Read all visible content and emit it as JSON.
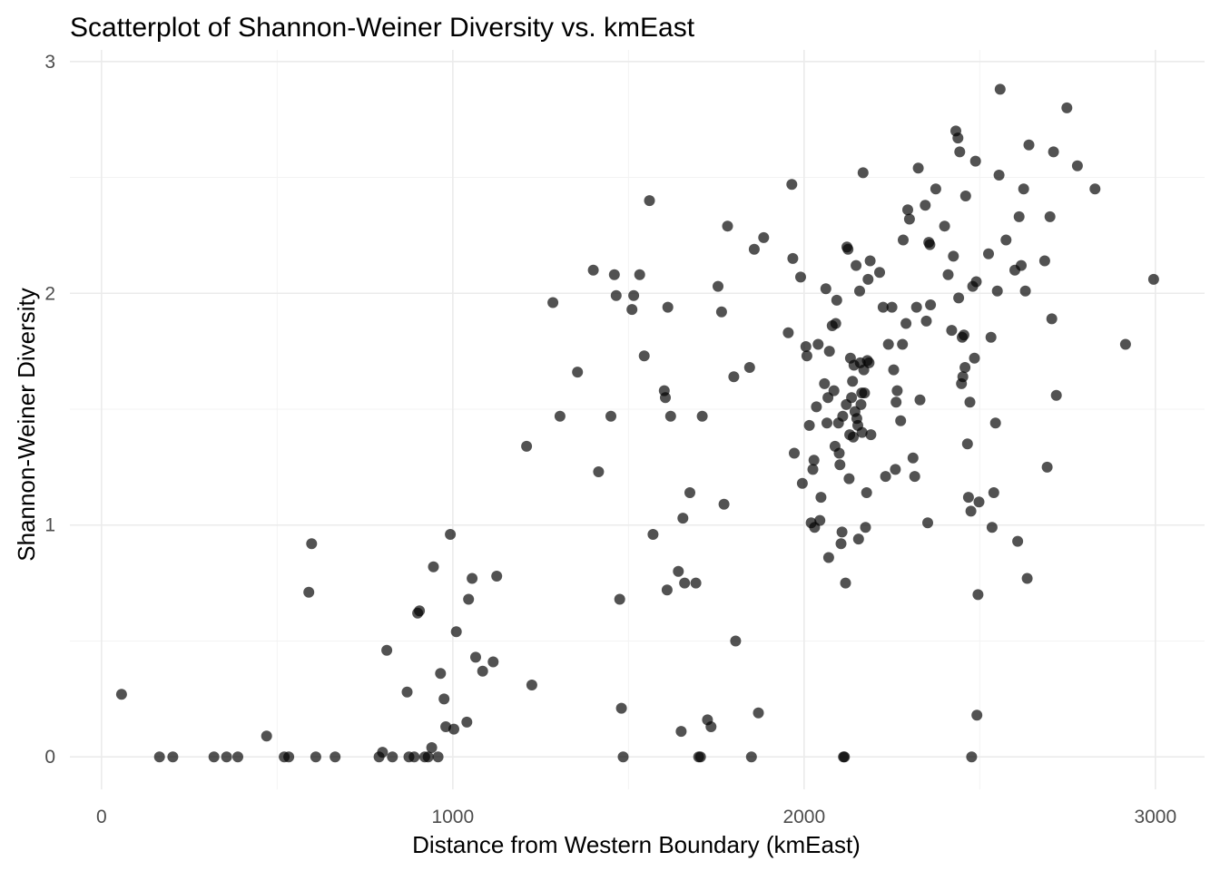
{
  "chart_data": {
    "type": "scatter",
    "title": "Scatterplot of Shannon-Weiner Diversity vs. kmEast",
    "xlabel": "Distance from Western Boundary (kmEast)",
    "ylabel": "Shannon-Weiner Diversity",
    "xlim": [
      -90,
      3140
    ],
    "ylim": [
      -0.14,
      3.05
    ],
    "xticks": [
      0,
      1000,
      2000,
      3000
    ],
    "xtick_labels": [
      "0",
      "1000",
      "2000",
      "3000"
    ],
    "yticks": [
      0,
      1,
      2,
      3
    ],
    "ytick_labels": [
      "0",
      "1",
      "2",
      "3"
    ],
    "grid": true,
    "legend": "none",
    "point_color": "#000000",
    "points": [
      [
        57,
        0.27
      ],
      [
        165,
        0
      ],
      [
        203,
        0
      ],
      [
        320,
        0
      ],
      [
        356,
        0
      ],
      [
        388,
        0
      ],
      [
        470,
        0.09
      ],
      [
        520,
        0
      ],
      [
        533,
        0
      ],
      [
        590,
        0.71
      ],
      [
        598,
        0.92
      ],
      [
        610,
        0
      ],
      [
        665,
        0
      ],
      [
        790,
        0
      ],
      [
        800,
        0.02
      ],
      [
        812,
        0.46
      ],
      [
        828,
        0
      ],
      [
        870,
        0.28
      ],
      [
        875,
        0
      ],
      [
        890,
        0
      ],
      [
        905,
        0.63
      ],
      [
        900,
        0.62
      ],
      [
        920,
        0
      ],
      [
        930,
        0
      ],
      [
        940,
        0.04
      ],
      [
        945,
        0.82
      ],
      [
        958,
        0
      ],
      [
        965,
        0.36
      ],
      [
        975,
        0.25
      ],
      [
        980,
        0.13
      ],
      [
        993,
        0.96
      ],
      [
        1003,
        0.12
      ],
      [
        1010,
        0.54
      ],
      [
        1040,
        0.15
      ],
      [
        1045,
        0.68
      ],
      [
        1055,
        0.77
      ],
      [
        1065,
        0.43
      ],
      [
        1085,
        0.37
      ],
      [
        1115,
        0.41
      ],
      [
        1125,
        0.78
      ],
      [
        1210,
        1.34
      ],
      [
        1225,
        0.31
      ],
      [
        1285,
        1.96
      ],
      [
        1305,
        1.47
      ],
      [
        1355,
        1.66
      ],
      [
        1400,
        2.1
      ],
      [
        1415,
        1.23
      ],
      [
        1450,
        1.47
      ],
      [
        1460,
        2.08
      ],
      [
        1465,
        1.99
      ],
      [
        1475,
        0.68
      ],
      [
        1480,
        0.21
      ],
      [
        1485,
        0
      ],
      [
        1510,
        1.93
      ],
      [
        1515,
        1.99
      ],
      [
        1532,
        2.08
      ],
      [
        1545,
        1.73
      ],
      [
        1560,
        2.4
      ],
      [
        1570,
        0.96
      ],
      [
        1602,
        1.58
      ],
      [
        1605,
        1.55
      ],
      [
        1610,
        0.72
      ],
      [
        1612,
        1.94
      ],
      [
        1620,
        1.47
      ],
      [
        1642,
        0.8
      ],
      [
        1650,
        0.11
      ],
      [
        1655,
        1.03
      ],
      [
        1660,
        0.75
      ],
      [
        1675,
        1.14
      ],
      [
        1692,
        0.75
      ],
      [
        1700,
        0
      ],
      [
        1705,
        0
      ],
      [
        1710,
        1.47
      ],
      [
        1725,
        0.16
      ],
      [
        1735,
        0.13
      ],
      [
        1755,
        2.03
      ],
      [
        1765,
        1.92
      ],
      [
        1772,
        1.09
      ],
      [
        1782,
        2.29
      ],
      [
        1800,
        1.64
      ],
      [
        1805,
        0.5
      ],
      [
        1845,
        1.68
      ],
      [
        1850,
        0
      ],
      [
        1858,
        2.19
      ],
      [
        1870,
        0.19
      ],
      [
        1885,
        2.24
      ],
      [
        1955,
        1.83
      ],
      [
        1965,
        2.47
      ],
      [
        1968,
        2.15
      ],
      [
        1972,
        1.31
      ],
      [
        1990,
        2.07
      ],
      [
        1995,
        1.18
      ],
      [
        2005,
        1.77
      ],
      [
        2008,
        1.73
      ],
      [
        2015,
        1.43
      ],
      [
        2020,
        1.01
      ],
      [
        2025,
        1.24
      ],
      [
        2028,
        1.28
      ],
      [
        2030,
        0.99
      ],
      [
        2035,
        1.51
      ],
      [
        2040,
        1.78
      ],
      [
        2045,
        1.02
      ],
      [
        2048,
        1.12
      ],
      [
        2058,
        1.61
      ],
      [
        2062,
        2.02
      ],
      [
        2065,
        1.44
      ],
      [
        2068,
        1.55
      ],
      [
        2070,
        0.86
      ],
      [
        2072,
        1.75
      ],
      [
        2080,
        1.86
      ],
      [
        2085,
        1.58
      ],
      [
        2088,
        1.34
      ],
      [
        2090,
        1.87
      ],
      [
        2093,
        1.97
      ],
      [
        2098,
        1.44
      ],
      [
        2100,
        1.31
      ],
      [
        2102,
        1.26
      ],
      [
        2105,
        0.92
      ],
      [
        2108,
        0.97
      ],
      [
        2110,
        1.47
      ],
      [
        2112,
        0
      ],
      [
        2115,
        0
      ],
      [
        2118,
        0.75
      ],
      [
        2120,
        1.52
      ],
      [
        2122,
        2.2
      ],
      [
        2125,
        2.19
      ],
      [
        2128,
        1.2
      ],
      [
        2130,
        1.39
      ],
      [
        2132,
        1.72
      ],
      [
        2135,
        1.55
      ],
      [
        2138,
        1.62
      ],
      [
        2140,
        1.38
      ],
      [
        2142,
        1.69
      ],
      [
        2145,
        1.49
      ],
      [
        2148,
        2.12
      ],
      [
        2150,
        1.46
      ],
      [
        2153,
        1.43
      ],
      [
        2155,
        0.94
      ],
      [
        2158,
        2.01
      ],
      [
        2160,
        1.7
      ],
      [
        2162,
        1.52
      ],
      [
        2164,
        1.57
      ],
      [
        2165,
        1.4
      ],
      [
        2168,
        2.52
      ],
      [
        2170,
        1.67
      ],
      [
        2172,
        1.57
      ],
      [
        2175,
        0.99
      ],
      [
        2178,
        1.14
      ],
      [
        2180,
        1.71
      ],
      [
        2182,
        2.06
      ],
      [
        2185,
        1.7
      ],
      [
        2188,
        2.14
      ],
      [
        2190,
        1.39
      ],
      [
        2215,
        2.09
      ],
      [
        2225,
        1.94
      ],
      [
        2232,
        1.21
      ],
      [
        2240,
        1.78
      ],
      [
        2250,
        1.94
      ],
      [
        2255,
        1.67
      ],
      [
        2260,
        1.24
      ],
      [
        2262,
        1.53
      ],
      [
        2265,
        1.58
      ],
      [
        2275,
        1.45
      ],
      [
        2280,
        1.78
      ],
      [
        2282,
        2.23
      ],
      [
        2290,
        1.87
      ],
      [
        2295,
        2.36
      ],
      [
        2300,
        2.32
      ],
      [
        2310,
        1.29
      ],
      [
        2315,
        1.21
      ],
      [
        2320,
        1.94
      ],
      [
        2325,
        2.54
      ],
      [
        2330,
        1.54
      ],
      [
        2345,
        2.38
      ],
      [
        2348,
        1.88
      ],
      [
        2352,
        1.01
      ],
      [
        2355,
        2.22
      ],
      [
        2358,
        2.21
      ],
      [
        2360,
        1.95
      ],
      [
        2375,
        2.45
      ],
      [
        2400,
        2.29
      ],
      [
        2410,
        2.08
      ],
      [
        2420,
        1.84
      ],
      [
        2425,
        2.16
      ],
      [
        2432,
        2.7
      ],
      [
        2438,
        2.67
      ],
      [
        2440,
        1.98
      ],
      [
        2443,
        2.61
      ],
      [
        2448,
        1.61
      ],
      [
        2450,
        1.81
      ],
      [
        2452,
        1.64
      ],
      [
        2455,
        1.82
      ],
      [
        2458,
        1.68
      ],
      [
        2460,
        2.42
      ],
      [
        2465,
        1.35
      ],
      [
        2468,
        1.12
      ],
      [
        2472,
        1.53
      ],
      [
        2475,
        1.06
      ],
      [
        2477,
        0
      ],
      [
        2480,
        2.03
      ],
      [
        2485,
        1.72
      ],
      [
        2488,
        2.57
      ],
      [
        2490,
        2.05
      ],
      [
        2492,
        0.18
      ],
      [
        2495,
        0.7
      ],
      [
        2498,
        1.1
      ],
      [
        2525,
        2.17
      ],
      [
        2532,
        1.81
      ],
      [
        2535,
        0.99
      ],
      [
        2540,
        1.14
      ],
      [
        2545,
        1.44
      ],
      [
        2550,
        2.01
      ],
      [
        2555,
        2.51
      ],
      [
        2558,
        2.88
      ],
      [
        2575,
        2.23
      ],
      [
        2600,
        2.1
      ],
      [
        2608,
        0.93
      ],
      [
        2612,
        2.33
      ],
      [
        2618,
        2.12
      ],
      [
        2625,
        2.45
      ],
      [
        2630,
        2.01
      ],
      [
        2635,
        0.77
      ],
      [
        2640,
        2.64
      ],
      [
        2685,
        2.14
      ],
      [
        2692,
        1.25
      ],
      [
        2700,
        2.33
      ],
      [
        2705,
        1.89
      ],
      [
        2710,
        2.61
      ],
      [
        2718,
        1.56
      ],
      [
        2748,
        2.8
      ],
      [
        2778,
        2.55
      ],
      [
        2828,
        2.45
      ],
      [
        2915,
        1.78
      ],
      [
        2995,
        2.06
      ]
    ]
  }
}
